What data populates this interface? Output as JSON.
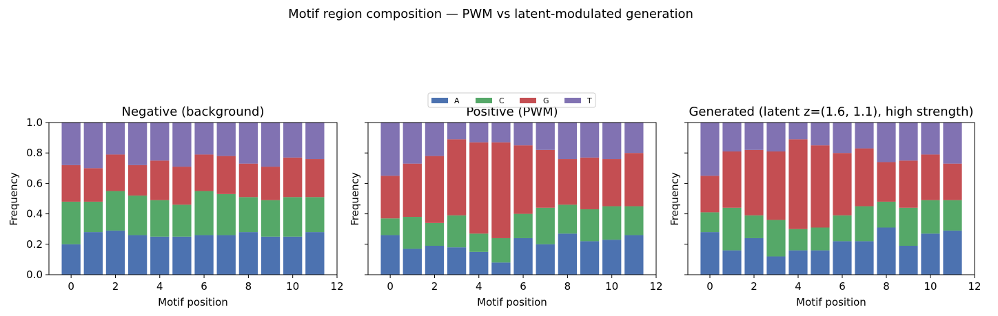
{
  "suptitle": "Motif region composition — PWM vs latent-modulated generation",
  "legend": {
    "placement": "top-center (above middle panel)",
    "entries": [
      {
        "label": "A",
        "color": "#4c72b0"
      },
      {
        "label": "C",
        "color": "#55a868"
      },
      {
        "label": "G",
        "color": "#c44e52"
      },
      {
        "label": "T",
        "color": "#8172b2"
      }
    ]
  },
  "chart_data": [
    {
      "type": "bar",
      "stacked": true,
      "title": "Negative (background)",
      "xlabel": "Motif position",
      "ylabel": "Frequency",
      "xlim": [
        -1,
        12
      ],
      "ylim": [
        0,
        1
      ],
      "xticks": [
        "0",
        "2",
        "4",
        "6",
        "8",
        "10",
        "12"
      ],
      "yticks": [
        "0.0",
        "0.2",
        "0.4",
        "0.6",
        "0.8",
        "1.0"
      ],
      "x": [
        0,
        1,
        2,
        3,
        4,
        5,
        6,
        7,
        8,
        9,
        10,
        11
      ],
      "series": [
        {
          "name": "A",
          "values": [
            0.2,
            0.28,
            0.29,
            0.26,
            0.25,
            0.25,
            0.26,
            0.26,
            0.28,
            0.25,
            0.25,
            0.28
          ]
        },
        {
          "name": "C",
          "values": [
            0.28,
            0.2,
            0.26,
            0.26,
            0.24,
            0.21,
            0.29,
            0.27,
            0.23,
            0.24,
            0.26,
            0.23
          ]
        },
        {
          "name": "G",
          "values": [
            0.24,
            0.22,
            0.24,
            0.2,
            0.26,
            0.25,
            0.24,
            0.25,
            0.22,
            0.22,
            0.26,
            0.25
          ]
        },
        {
          "name": "T",
          "values": [
            0.28,
            0.3,
            0.21,
            0.28,
            0.25,
            0.29,
            0.21,
            0.22,
            0.27,
            0.29,
            0.23,
            0.24
          ]
        }
      ]
    },
    {
      "type": "bar",
      "stacked": true,
      "title": "Positive (PWM)",
      "xlabel": "Motif position",
      "ylabel": "Frequency",
      "xlim": [
        -1,
        12
      ],
      "ylim": [
        0,
        1
      ],
      "xticks": [
        "0",
        "2",
        "4",
        "6",
        "8",
        "10",
        "12"
      ],
      "yticks": [],
      "x": [
        0,
        1,
        2,
        3,
        4,
        5,
        6,
        7,
        8,
        9,
        10,
        11
      ],
      "series": [
        {
          "name": "A",
          "values": [
            0.26,
            0.17,
            0.19,
            0.18,
            0.15,
            0.08,
            0.24,
            0.2,
            0.27,
            0.22,
            0.23,
            0.26
          ]
        },
        {
          "name": "C",
          "values": [
            0.11,
            0.21,
            0.15,
            0.21,
            0.12,
            0.16,
            0.16,
            0.24,
            0.19,
            0.21,
            0.22,
            0.19
          ]
        },
        {
          "name": "G",
          "values": [
            0.28,
            0.35,
            0.44,
            0.5,
            0.6,
            0.63,
            0.45,
            0.38,
            0.3,
            0.34,
            0.31,
            0.35
          ]
        },
        {
          "name": "T",
          "values": [
            0.35,
            0.27,
            0.22,
            0.11,
            0.13,
            0.13,
            0.15,
            0.18,
            0.24,
            0.23,
            0.24,
            0.2
          ]
        }
      ]
    },
    {
      "type": "bar",
      "stacked": true,
      "title": "Generated (latent z=(1.6, 1.1), high strength)",
      "xlabel": "Motif position",
      "ylabel": "Frequency",
      "xlim": [
        -1,
        12
      ],
      "ylim": [
        0,
        1
      ],
      "xticks": [
        "0",
        "2",
        "4",
        "6",
        "8",
        "10",
        "12"
      ],
      "yticks": [],
      "x": [
        0,
        1,
        2,
        3,
        4,
        5,
        6,
        7,
        8,
        9,
        10,
        11
      ],
      "series": [
        {
          "name": "A",
          "values": [
            0.28,
            0.16,
            0.24,
            0.12,
            0.16,
            0.16,
            0.22,
            0.22,
            0.31,
            0.19,
            0.27,
            0.29
          ]
        },
        {
          "name": "C",
          "values": [
            0.13,
            0.28,
            0.15,
            0.24,
            0.14,
            0.15,
            0.17,
            0.23,
            0.17,
            0.25,
            0.22,
            0.2
          ]
        },
        {
          "name": "G",
          "values": [
            0.24,
            0.37,
            0.43,
            0.45,
            0.59,
            0.54,
            0.41,
            0.38,
            0.26,
            0.31,
            0.3,
            0.24
          ]
        },
        {
          "name": "T",
          "values": [
            0.35,
            0.19,
            0.18,
            0.19,
            0.11,
            0.15,
            0.2,
            0.17,
            0.26,
            0.25,
            0.21,
            0.27
          ]
        }
      ]
    }
  ]
}
